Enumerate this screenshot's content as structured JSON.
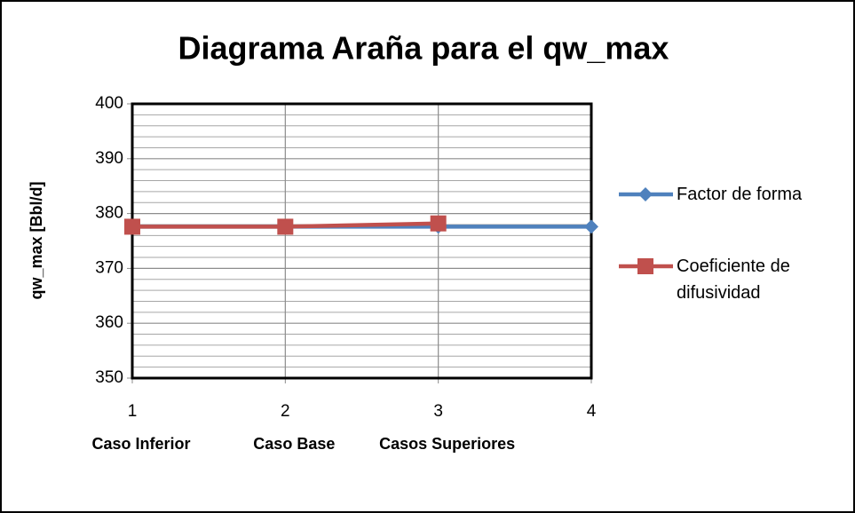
{
  "chart_data": {
    "type": "line",
    "title": "Diagrama Araña para el qw_max",
    "y_label": "qw_max [Bbl/d]",
    "x": [
      1,
      2,
      3,
      4
    ],
    "x_sublabels": [
      "Caso Inferior",
      "Caso Base",
      "Casos Superiores"
    ],
    "series": [
      {
        "name": "Factor de forma",
        "color": "#4f81bd",
        "marker": "diamond",
        "values": [
          377.6,
          377.6,
          377.6,
          377.6
        ]
      },
      {
        "name": "Coeficiente de difusividad",
        "color": "#c0504d",
        "marker": "square",
        "values": [
          377.6,
          377.6,
          378.2,
          null
        ]
      }
    ],
    "xlim": [
      1,
      4
    ],
    "xticks": [
      1,
      2,
      3,
      4
    ],
    "ylim": [
      350,
      400
    ],
    "yticks": [
      350,
      360,
      370,
      380,
      390,
      400
    ],
    "yminorticks": [
      352,
      354,
      356,
      358,
      362,
      364,
      366,
      368,
      372,
      374,
      376,
      378,
      382,
      384,
      386,
      388,
      392,
      394,
      396,
      398
    ],
    "grid": true,
    "legend": "right"
  }
}
